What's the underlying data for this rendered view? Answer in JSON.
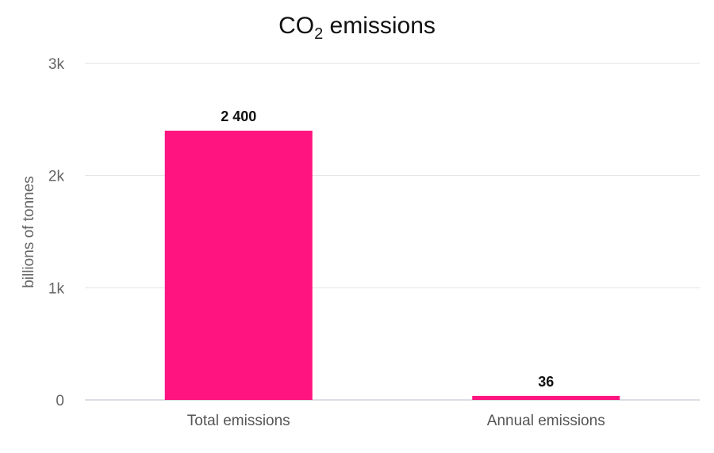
{
  "chart_data": {
    "type": "bar",
    "title_main": "CO",
    "title_sub": "2",
    "title_rest": " emissions",
    "ylabel": "billions of tonnes",
    "xlabel": "",
    "ylim": [
      0,
      3000
    ],
    "yticks": [
      {
        "value": 0,
        "label": "0"
      },
      {
        "value": 1000,
        "label": "1k"
      },
      {
        "value": 2000,
        "label": "2k"
      },
      {
        "value": 3000,
        "label": "3k"
      }
    ],
    "categories": [
      "Total emissions",
      "Annual emissions"
    ],
    "values": [
      2400,
      36
    ],
    "value_labels": [
      "2 400",
      "36"
    ],
    "bar_color": "#ff1480",
    "grid": true,
    "legend": "none"
  }
}
